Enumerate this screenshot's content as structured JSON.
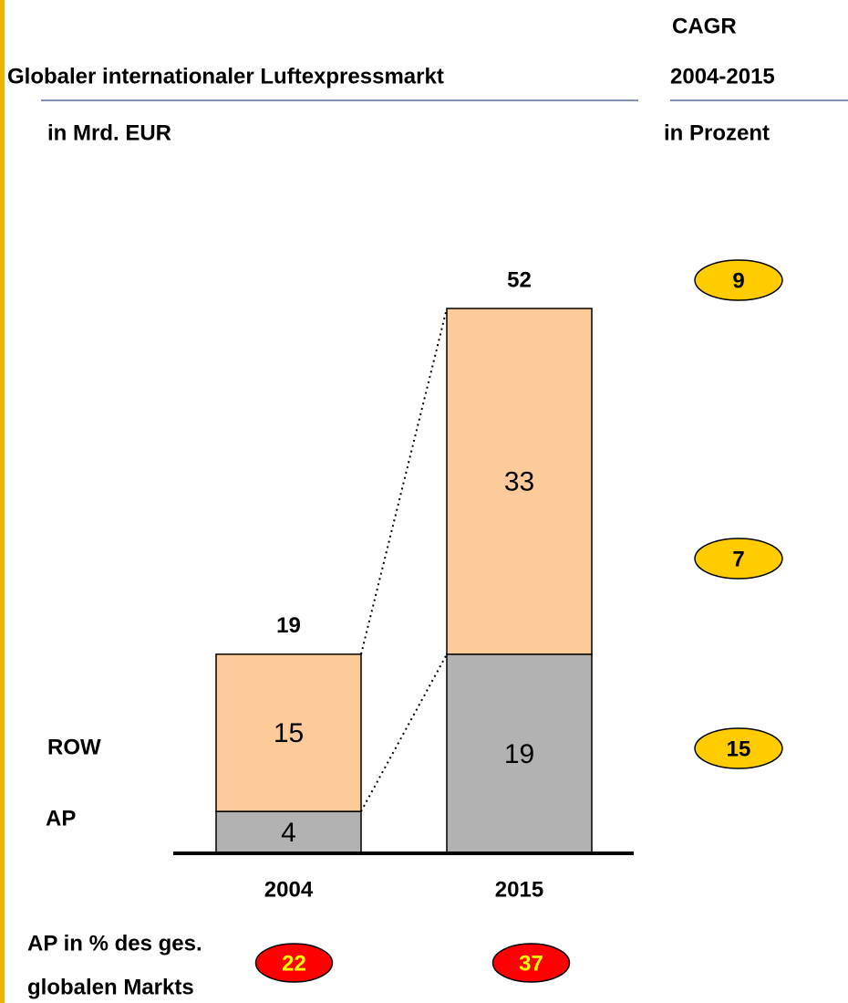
{
  "chart_data": {
    "type": "bar",
    "stacked": true,
    "title": "Globaler internationaler Luftexpressmarkt",
    "subtitle": "in Mrd. EUR",
    "categories": [
      "2004",
      "2015"
    ],
    "series": [
      {
        "name": "AP",
        "color": "#b2b2b2",
        "values": [
          4,
          19
        ]
      },
      {
        "name": "ROW",
        "color": "#fdcb9a",
        "values": [
          15,
          33
        ]
      }
    ],
    "totals": [
      19,
      52
    ],
    "cagr_title": "CAGR",
    "cagr_period": "2004-2015",
    "cagr_unit": "in Prozent",
    "cagr": [
      9,
      7,
      15
    ],
    "cagr_color": "#ffcc00",
    "share_label": [
      "AP in % des ges.",
      "globalen Markts"
    ],
    "share": [
      22,
      37
    ],
    "share_color": "#ff0000"
  }
}
